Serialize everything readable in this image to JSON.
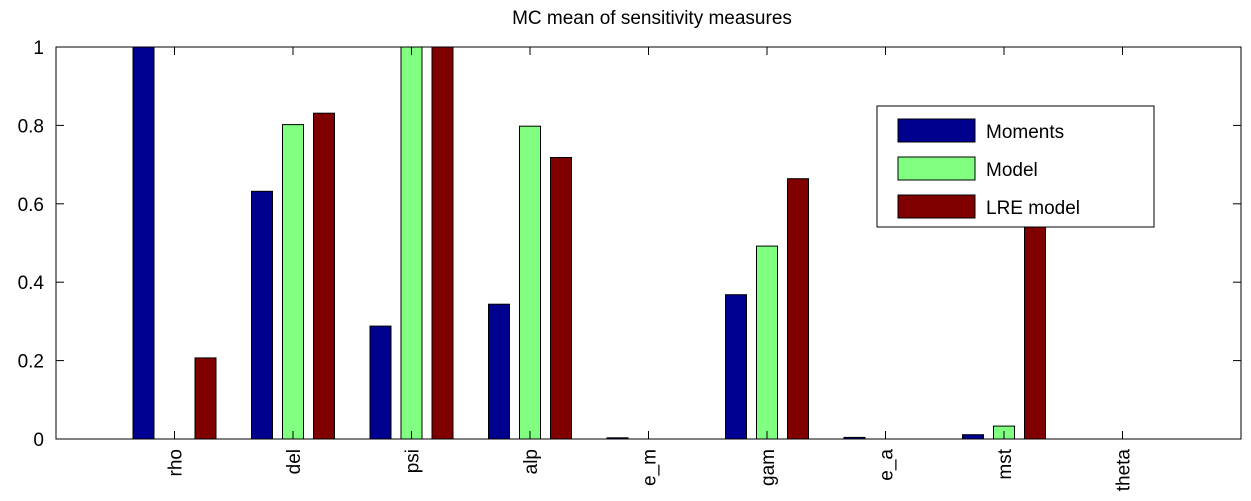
{
  "chart_data": {
    "type": "bar",
    "title": "MC mean of sensitivity measures",
    "xlabel": "",
    "ylabel": "",
    "categories": [
      "rho",
      "del",
      "psi",
      "alp",
      "e_m",
      "gam",
      "e_a",
      "mst",
      "theta"
    ],
    "series": [
      {
        "name": "Moments",
        "color": "#00008f",
        "values": [
          1.0,
          0.632,
          0.288,
          0.344,
          0.003,
          0.368,
          0.004,
          0.011,
          0.0
        ]
      },
      {
        "name": "Model",
        "color": "#80ff80",
        "values": [
          0.0,
          0.802,
          1.0,
          0.798,
          0.0,
          0.492,
          0.0,
          0.033,
          0.0
        ]
      },
      {
        "name": "LRE model",
        "color": "#800000",
        "values": [
          0.207,
          0.831,
          1.0,
          0.718,
          0.0,
          0.664,
          0.0,
          0.548,
          0.0
        ]
      }
    ],
    "ylim": [
      0,
      1
    ],
    "yticks": [
      "0",
      "0.2",
      "0.4",
      "0.6",
      "0.8",
      "1"
    ],
    "grid": false,
    "legend_position": "top-right"
  }
}
